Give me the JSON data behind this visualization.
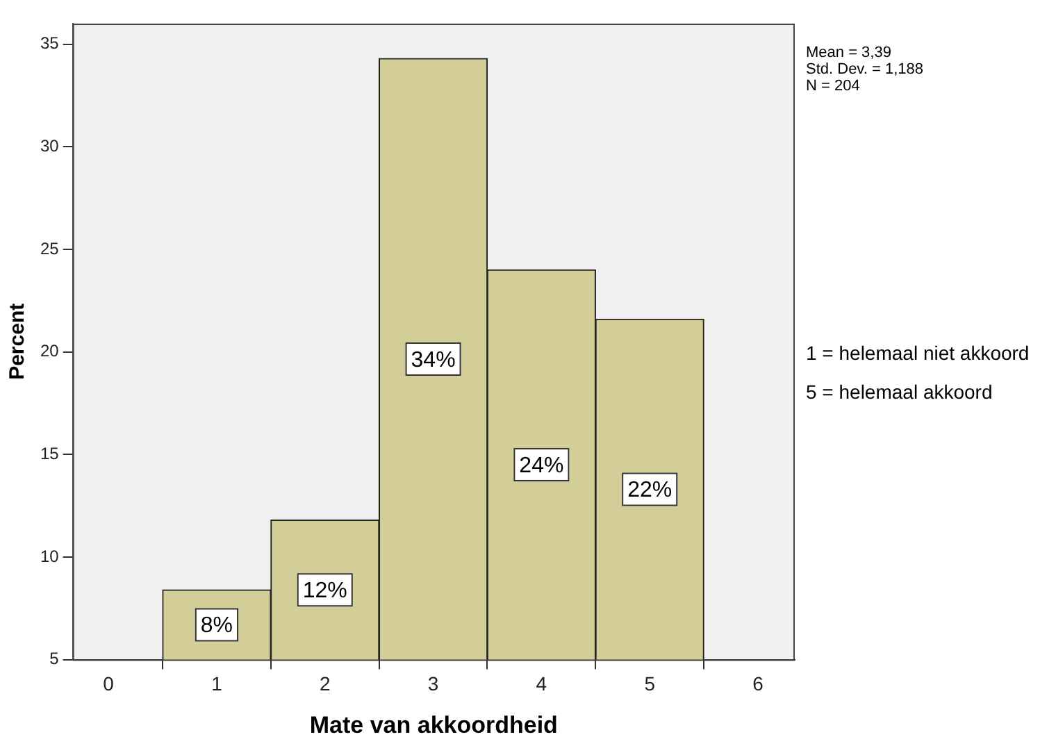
{
  "chart_data": {
    "type": "histogram",
    "xlabel": "Mate van akkoordheid",
    "ylabel": "Percent",
    "bins": [
      0.5,
      1.5,
      2.5,
      3.5,
      4.5,
      5.5
    ],
    "values": [
      8.4,
      11.8,
      34.3,
      24.0,
      21.6
    ],
    "value_labels": [
      "8%",
      "12%",
      "34%",
      "24%",
      "22%"
    ],
    "color": "#d3ce97",
    "xlim": [
      -0.33,
      6.34
    ],
    "xticks": [
      0,
      1,
      2,
      3,
      4,
      5,
      6
    ],
    "ylim": [
      5,
      36
    ],
    "yticks": [
      5,
      10,
      15,
      20,
      25,
      30,
      35
    ],
    "grid": false,
    "legend": false,
    "annotations": [
      "Mean = 3,39",
      "Std. Dev. = 1,188",
      "N = 204",
      "1 = helemaal niet akkoord",
      "5 = helemaal akkoord"
    ]
  }
}
